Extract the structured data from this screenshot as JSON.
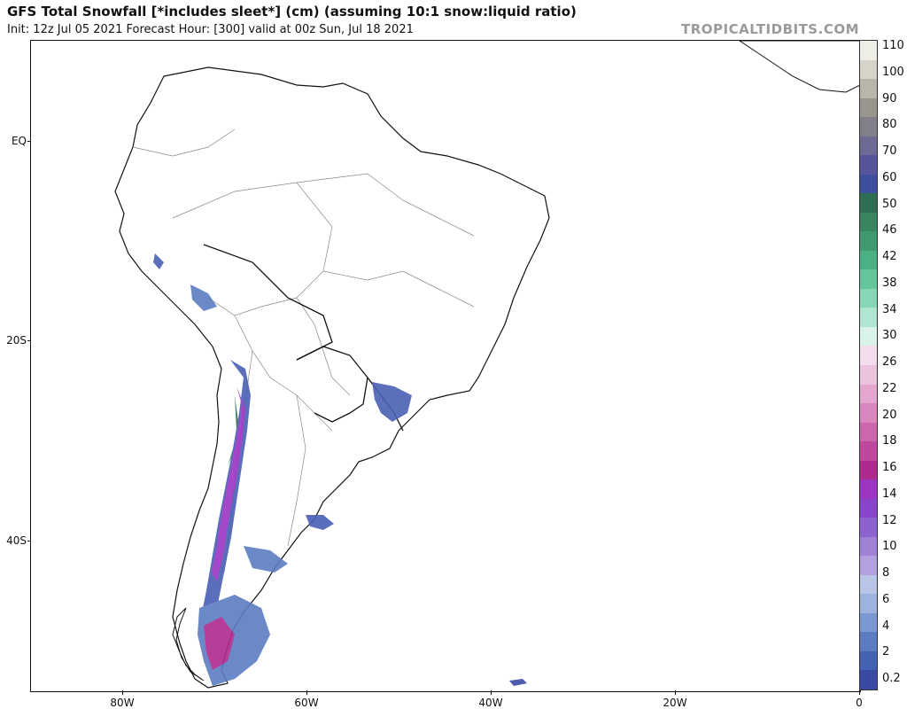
{
  "header": {
    "title": "GFS Total Snowfall [*includes sleet*] (cm) (assuming 10:1 snow:liquid ratio)",
    "subtitle": "Init: 12z Jul 05 2021   Forecast Hour: [300]   valid at 00z Sun, Jul 18 2021",
    "brand": "TROPICALTIDBITS.COM"
  },
  "axes": {
    "lat_labels": [
      "EQ",
      "20S",
      "40S"
    ],
    "lon_labels": [
      "80W",
      "60W",
      "40W",
      "20W",
      "0"
    ]
  },
  "colorbar": {
    "labels": [
      "110",
      "100",
      "90",
      "80",
      "70",
      "60",
      "50",
      "46",
      "42",
      "38",
      "34",
      "30",
      "26",
      "22",
      "20",
      "18",
      "16",
      "14",
      "12",
      "10",
      "8",
      "6",
      "4",
      "2",
      "0.2"
    ],
    "colors": [
      "#efeee6",
      "#d6d3c8",
      "#b8b5aa",
      "#99968d",
      "#837f8a",
      "#6d6a95",
      "#56559c",
      "#3e4f9e",
      "#2f6e52",
      "#39855f",
      "#3f9a6e",
      "#4cb084",
      "#64c59b",
      "#86d7b6",
      "#b0e6d1",
      "#d9f3ea",
      "#f3dcec",
      "#ecc3df",
      "#e3a6cf",
      "#d888bf",
      "#cc67ad",
      "#bf479d",
      "#b02a8d",
      "#9c34c4",
      "#8844cc",
      "#8c62cf",
      "#9f82d6",
      "#b3a0de",
      "#b9c5e6",
      "#9cb3de",
      "#7b98d1",
      "#5c7cc2",
      "#4462b2",
      "#3a4aa3"
    ],
    "legend_item_colors_note": ""
  }
}
